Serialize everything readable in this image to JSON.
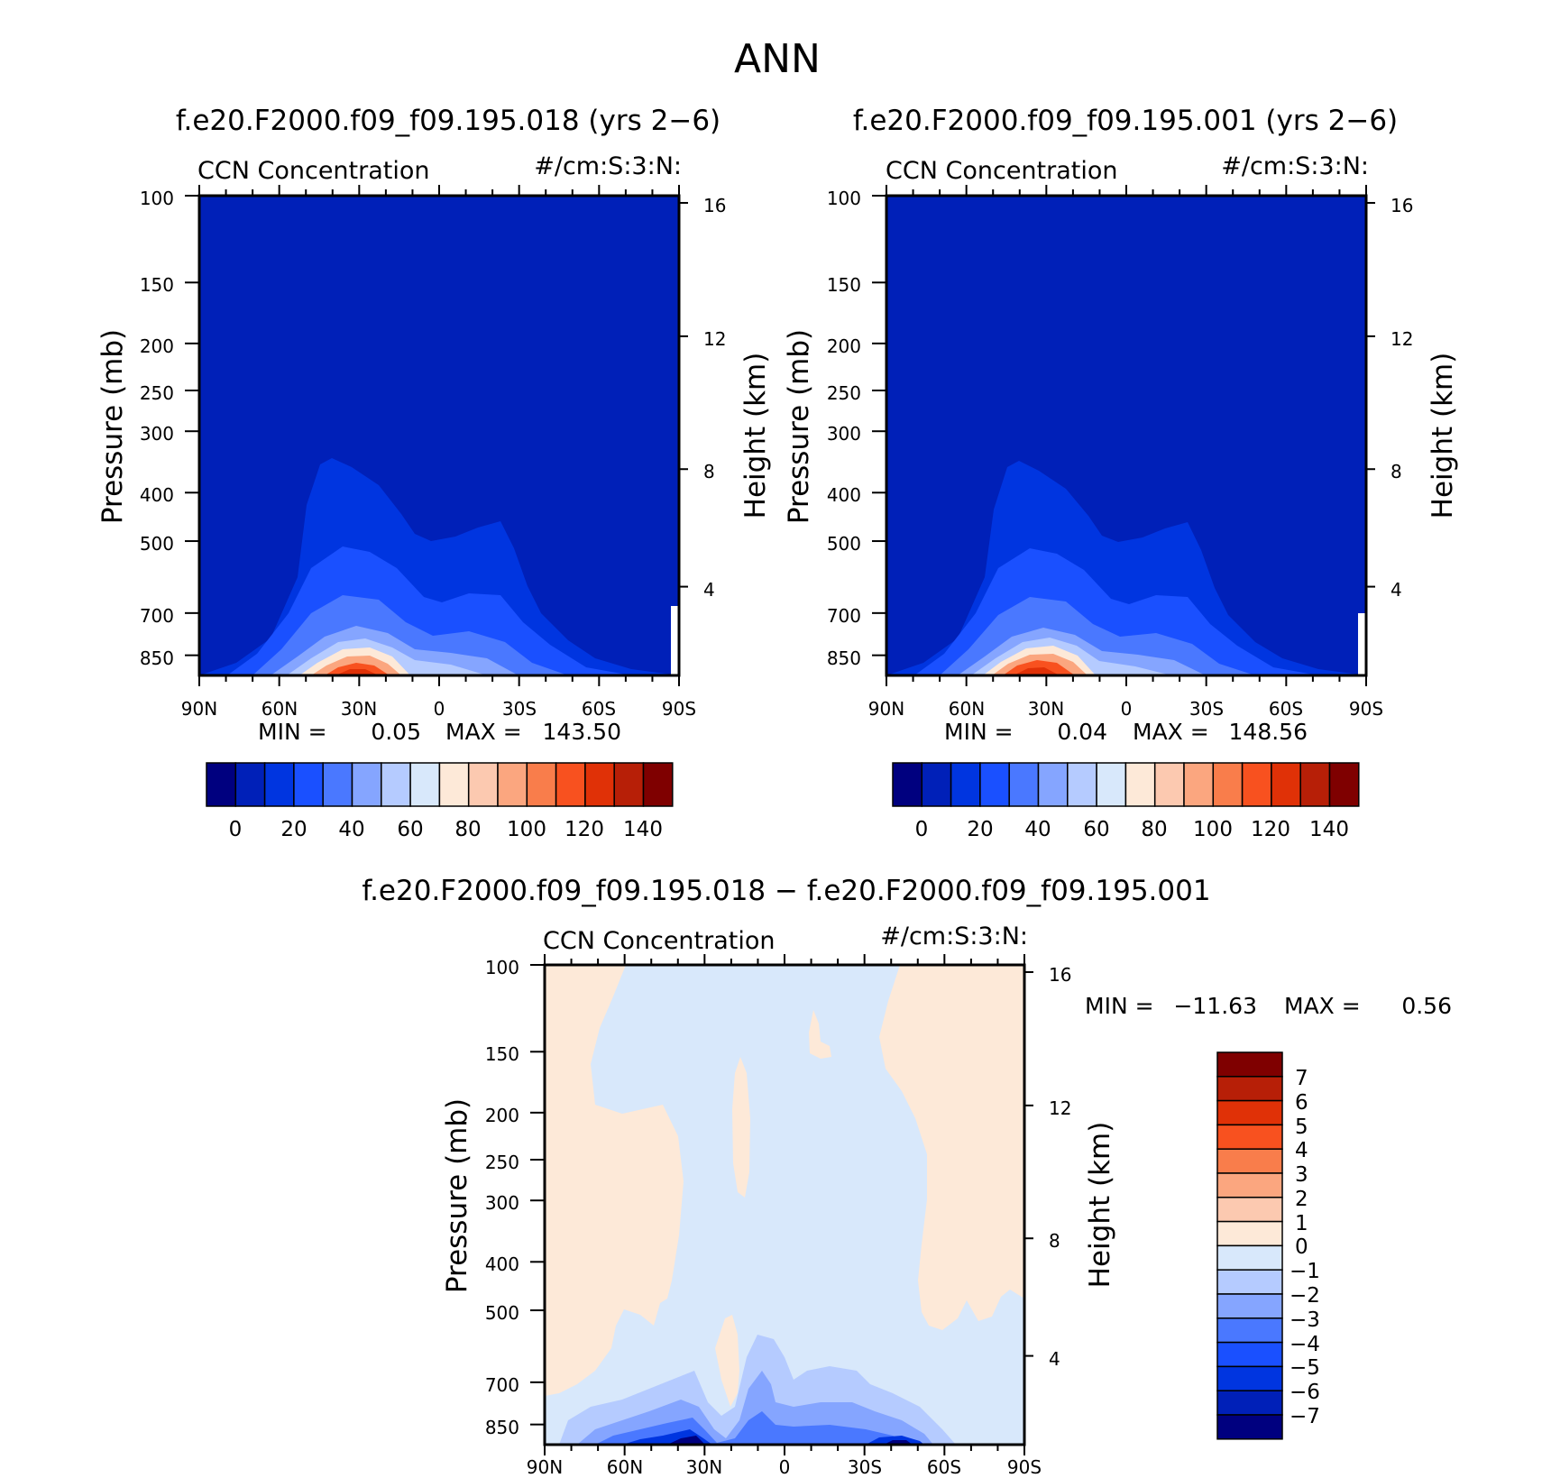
{
  "figure": {
    "title": "ANN"
  },
  "colors": {
    "field_scale": [
      "#00007f",
      "#0020b8",
      "#0035e0",
      "#1a50ff",
      "#4a78ff",
      "#85a5ff",
      "#b5cbff",
      "#d8e8fb",
      "#fde9d8",
      "#fcc9b0",
      "#fba67f",
      "#f97d4b",
      "#f8511f",
      "#e03107",
      "#b71f07",
      "#7f0000"
    ],
    "diff_scale": [
      "#00007f",
      "#0020b8",
      "#0035e0",
      "#1a50ff",
      "#4a78ff",
      "#85a5ff",
      "#b5cbff",
      "#d8e8fb",
      "#fde9d8",
      "#fcc9b0",
      "#fba67f",
      "#f97d4b",
      "#f8511f",
      "#e03107",
      "#b71f07",
      "#7f0000"
    ]
  },
  "chart_data": [
    {
      "type": "heatmap",
      "title": "f.e20.F2000.f09_f09.195.018 (yrs 2−6)",
      "left_string": "CCN Concentration",
      "right_string": "#/cm:S:3:N:",
      "ylabel": "Pressure (mb)",
      "ylabel_right": "Height (km)",
      "x_ticklabels": [
        "90N",
        "60N",
        "30N",
        "0",
        "30S",
        "60S",
        "90S"
      ],
      "y_ticklabels": [
        "100",
        "150",
        "200",
        "250",
        "300",
        "400",
        "500",
        "700",
        "850"
      ],
      "y_ticklabels_right": [
        "16",
        "12",
        "8",
        "4"
      ],
      "min_label": "MIN =",
      "min_value": "0.05",
      "max_label": "MAX =",
      "max_value": "143.50",
      "colorbar_labels": [
        "0",
        "20",
        "40",
        "60",
        "80",
        "100",
        "120",
        "140"
      ]
    },
    {
      "type": "heatmap",
      "title": "f.e20.F2000.f09_f09.195.001 (yrs 2−6)",
      "left_string": "CCN Concentration",
      "right_string": "#/cm:S:3:N:",
      "ylabel": "Pressure (mb)",
      "ylabel_right": "Height (km)",
      "x_ticklabels": [
        "90N",
        "60N",
        "30N",
        "0",
        "30S",
        "60S",
        "90S"
      ],
      "y_ticklabels": [
        "100",
        "150",
        "200",
        "250",
        "300",
        "400",
        "500",
        "700",
        "850"
      ],
      "y_ticklabels_right": [
        "16",
        "12",
        "8",
        "4"
      ],
      "min_label": "MIN =",
      "min_value": "0.04",
      "max_label": "MAX =",
      "max_value": "148.56",
      "colorbar_labels": [
        "0",
        "20",
        "40",
        "60",
        "80",
        "100",
        "120",
        "140"
      ]
    },
    {
      "type": "heatmap",
      "title": "f.e20.F2000.f09_f09.195.018 − f.e20.F2000.f09_f09.195.001",
      "left_string": "CCN Concentration",
      "right_string": "#/cm:S:3:N:",
      "ylabel": "Pressure (mb)",
      "ylabel_right": "Height (km)",
      "x_ticklabels": [
        "90N",
        "60N",
        "30N",
        "0",
        "30S",
        "60S",
        "90S"
      ],
      "y_ticklabels": [
        "100",
        "150",
        "200",
        "250",
        "300",
        "400",
        "500",
        "700",
        "850"
      ],
      "y_ticklabels_right": [
        "16",
        "12",
        "8",
        "4"
      ],
      "min_label": "MIN =",
      "min_value": "−11.63",
      "max_label": "MAX =",
      "max_value": "0.56",
      "colorbar_labels": [
        "7",
        "6",
        "5",
        "4",
        "3",
        "2",
        "1",
        "0",
        "−1",
        "−2",
        "−3",
        "−4",
        "−5",
        "−6",
        "−7"
      ]
    }
  ]
}
